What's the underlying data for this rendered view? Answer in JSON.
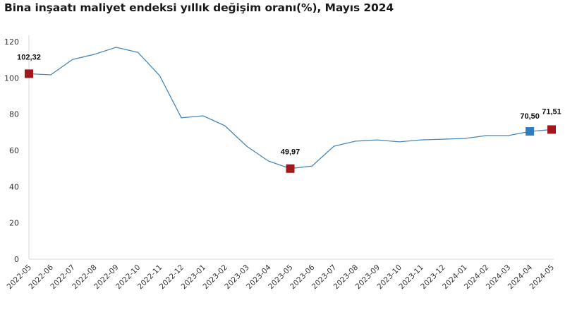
{
  "title": "Bina inşaatı maliyet endeksi yıllık değişim oranı(%), Mayıs 2024",
  "colors": {
    "line": "#4a87b5",
    "highlight_red": "#a3161b",
    "highlight_blue": "#2d7dbf",
    "axis": "#d9d9d9"
  },
  "chart_data": {
    "type": "line",
    "title": "Bina inşaatı maliyet endeksi yıllık değişim oranı(%), Mayıs 2024",
    "xlabel": "",
    "ylabel": "",
    "ylim": [
      0,
      120
    ],
    "yticks": [
      0,
      20,
      40,
      60,
      80,
      100,
      120
    ],
    "grid": false,
    "legend": null,
    "categories": [
      "2022-05",
      "2022-06",
      "2022-07",
      "2022-08",
      "2022-09",
      "2022-10",
      "2022-11",
      "2022-12",
      "2023-01",
      "2023-02",
      "2023-03",
      "2023-04",
      "2023-05",
      "2023-06",
      "2023-07",
      "2023-08",
      "2023-09",
      "2023-10",
      "2023-11",
      "2023-12",
      "2024-01",
      "2024-02",
      "2024-03",
      "2024-04",
      "2024-05"
    ],
    "series": [
      {
        "name": "Yıllık değişim oranı (%)",
        "values": [
          102.32,
          101.7,
          110.2,
          113.0,
          116.9,
          114.1,
          101.3,
          78.0,
          79.1,
          73.6,
          62.3,
          54.1,
          49.97,
          51.4,
          62.3,
          65.1,
          65.8,
          64.7,
          65.8,
          66.2,
          66.6,
          68.2,
          68.2,
          70.5,
          71.51
        ]
      }
    ],
    "annotations": [
      {
        "index": 0,
        "label": "102,32",
        "marker": "red"
      },
      {
        "index": 12,
        "label": "49,97",
        "marker": "red"
      },
      {
        "index": 23,
        "label": "70,50",
        "marker": "blue"
      },
      {
        "index": 24,
        "label": "71,51",
        "marker": "red"
      }
    ]
  }
}
